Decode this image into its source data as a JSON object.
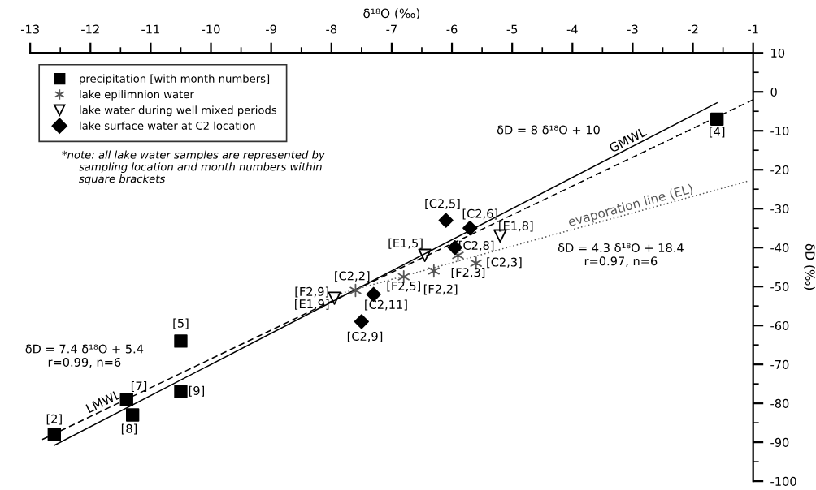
{
  "chart_data": {
    "type": "scatter",
    "xlabel": "δ¹⁸O (‰)",
    "ylabel": "δD (‰)",
    "xlim": [
      -13,
      -1
    ],
    "xticks": [
      -13,
      -12,
      -11,
      -10,
      -9,
      -8,
      -7,
      -6,
      -5,
      -4,
      -3,
      -2,
      -1
    ],
    "ylim": [
      -100,
      10
    ],
    "yticks": [
      -100,
      -90,
      -80,
      -70,
      -60,
      -50,
      -40,
      -30,
      -20,
      -10,
      0,
      10
    ],
    "grid": false,
    "legend": "top left",
    "series": [
      {
        "name": "precipitation [with month numbers]",
        "marker": "square",
        "color": "#000000",
        "x": [
          -12.6,
          -11.4,
          -11.3,
          -10.5,
          -10.5,
          -1.6
        ],
        "values": [
          -88,
          -79,
          -83,
          -64,
          -77,
          -7
        ]
      },
      {
        "name": "lake epilimnion water",
        "marker": "cross",
        "color": "#555555",
        "x": [
          -7.6,
          -6.8,
          -6.3,
          -5.9,
          -5.6
        ],
        "values": [
          -51,
          -47.5,
          -46,
          -42,
          -44
        ]
      },
      {
        "name": "lake water during well mixed periods",
        "marker": "triangle",
        "color": "#000000",
        "x": [
          -6.45,
          -5.2,
          -7.95
        ],
        "values": [
          -42,
          -37,
          -53
        ]
      },
      {
        "name": "lake surface water at C2 location",
        "marker": "diamond",
        "color": "#000000",
        "x": [
          -6.1,
          -5.7,
          -5.95,
          -7.3,
          -7.5
        ],
        "values": [
          -33,
          -35,
          -40,
          -52,
          -59
        ]
      },
      {
        "name": "GMWL",
        "type": "line",
        "line_style": "solid",
        "color": "#000000",
        "x": [
          -12.6,
          -1.6
        ],
        "values": [
          -90.8,
          -2.8
        ]
      },
      {
        "name": "LMWL",
        "type": "line",
        "line_style": "dashed",
        "color": "#000000",
        "x": [
          -12.8,
          -1
        ],
        "values": [
          -89.3,
          -2
        ]
      },
      {
        "name": "evaporation line (EL)",
        "type": "line",
        "line_style": "dotted",
        "color": "#555555",
        "x": [
          -7.9,
          -1.1
        ],
        "values": [
          -52,
          -23
        ]
      }
    ],
    "annotations": [
      {
        "text": "[2]",
        "x": -12.6,
        "y": -88
      },
      {
        "text": "[7]",
        "x": -11.4,
        "y": -79
      },
      {
        "text": "[8]",
        "x": -11.3,
        "y": -83
      },
      {
        "text": "[5]",
        "x": -10.5,
        "y": -64
      },
      {
        "text": "[9]",
        "x": -10.5,
        "y": -77
      },
      {
        "text": "[4]",
        "x": -1.6,
        "y": -7
      },
      {
        "text": "[C2,5]",
        "x": -6.1,
        "y": -33
      },
      {
        "text": "[C2,6]",
        "x": -5.7,
        "y": -35
      },
      {
        "text": "[C2,8]",
        "x": -5.95,
        "y": -40
      },
      {
        "text": "[C2,11]",
        "x": -7.3,
        "y": -52
      },
      {
        "text": "[C2,9]",
        "x": -7.5,
        "y": -59
      },
      {
        "text": "[E1,5]",
        "x": -6.45,
        "y": -42
      },
      {
        "text": "[E1,8]",
        "x": -5.2,
        "y": -37
      },
      {
        "text": "[F2,9]",
        "x": -7.95,
        "y": -53
      },
      {
        "text": "[E1,9]",
        "x": -7.95,
        "y": -53
      },
      {
        "text": "[C2,2]",
        "x": -7.6,
        "y": -51
      },
      {
        "text": "[F2,5]",
        "x": -6.8,
        "y": -47.5
      },
      {
        "text": "[F2,3]",
        "x": -5.9,
        "y": -42
      },
      {
        "text": "[F2,2]",
        "x": -6.3,
        "y": -46
      },
      {
        "text": "[C2,3]",
        "x": -5.6,
        "y": -44
      },
      "*note: all lake water samples are represented by\n     sampling location and month numbers within\n     square brackets",
      "δD = 8 δ¹⁸O + 10",
      "δD = 4.3 δ¹⁸O + 18.4\nr=0.97, n=6",
      "δD = 7.4 δ¹⁸O + 5.4\nr=0.99, n=6"
    ]
  }
}
